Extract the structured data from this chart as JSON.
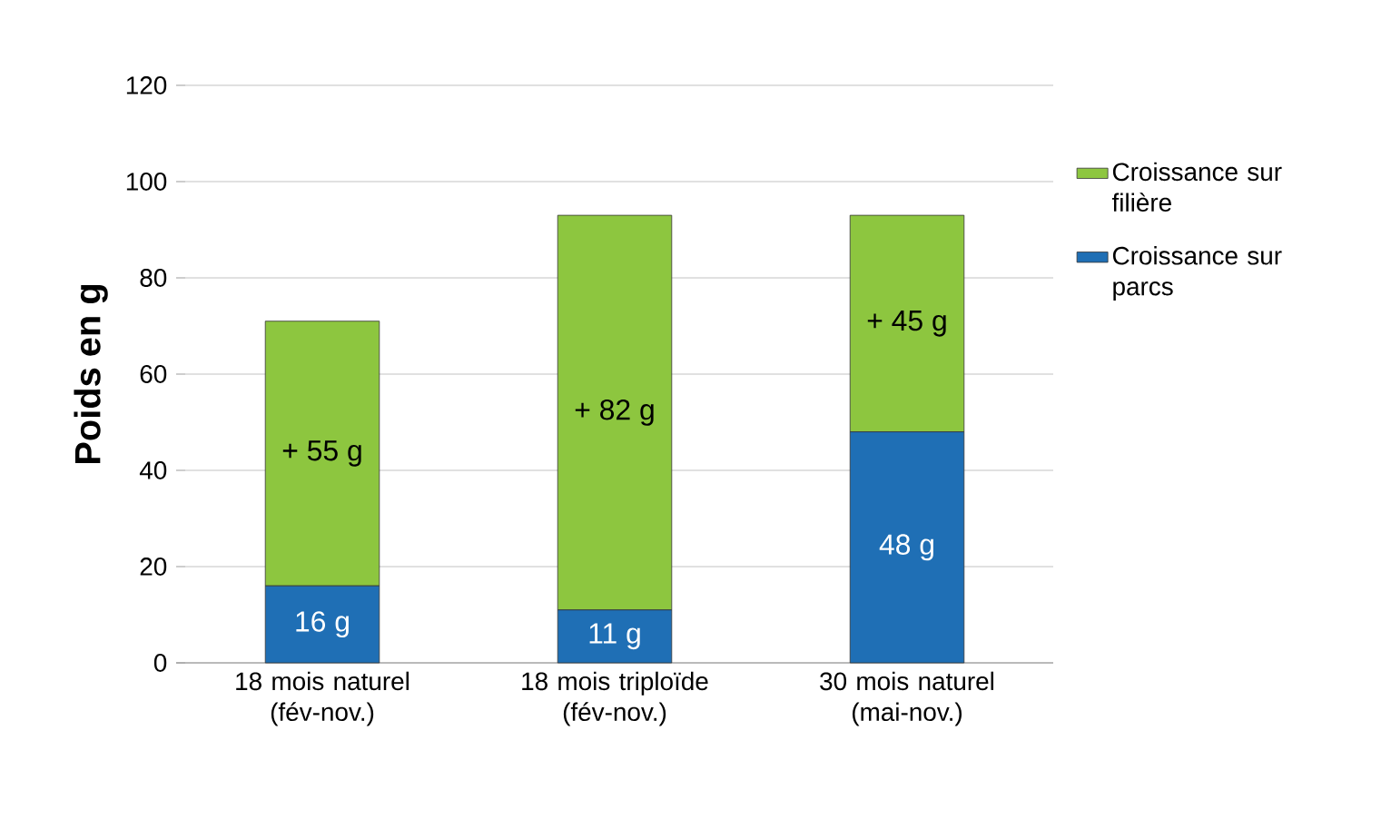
{
  "chart_data": {
    "type": "bar",
    "stacked": true,
    "ylabel": "Poids en g",
    "categories": [
      "18 mois naturel (fév-nov.)",
      "18 mois triploïde (fév-nov.)",
      "30 mois naturel (mai-nov.)"
    ],
    "series": [
      {
        "name": "Croissance sur parcs",
        "color": "#1f6fb5",
        "values": [
          16,
          11,
          48
        ],
        "value_labels": [
          "16 g",
          "11 g",
          "48 g"
        ]
      },
      {
        "name": "Croissance sur filière",
        "color": "#8dc63f",
        "values": [
          55,
          82,
          45
        ],
        "value_labels": [
          "+ 55 g",
          "+ 82 g",
          "+ 45 g"
        ]
      }
    ],
    "ylim": [
      0,
      120
    ],
    "yticks": [
      0,
      20,
      40,
      60,
      80,
      100,
      120
    ],
    "grid": "y",
    "legend": "right"
  }
}
